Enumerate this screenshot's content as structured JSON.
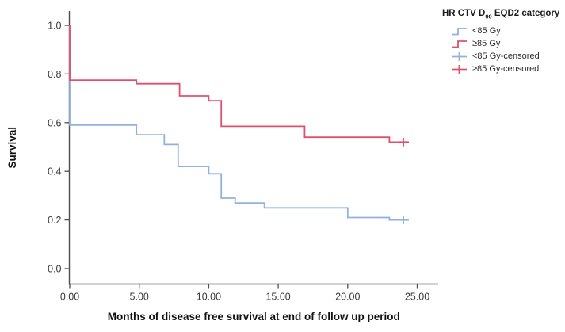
{
  "chart_data": {
    "type": "line",
    "subtype": "kaplan-meier-step-survival",
    "title": "",
    "xlabel": "Months of disease free survival at end of follow up period",
    "ylabel": "Survival",
    "xlim": [
      0,
      26.5
    ],
    "ylim": [
      0,
      1.06
    ],
    "xticks": [
      0,
      5,
      10,
      15,
      20,
      25
    ],
    "xtick_labels": [
      "0.00",
      "5.00",
      "10.00",
      "15.00",
      "20.00",
      "25.00"
    ],
    "yticks": [
      0.0,
      0.2,
      0.4,
      0.6,
      0.8,
      1.0
    ],
    "ytick_labels": [
      "0.0",
      "0.2",
      "0.4",
      "0.6",
      "0.8",
      "1.0"
    ],
    "grid": false,
    "axis_color": "#4d4d4d",
    "legend": {
      "position": "top-right",
      "title_prefix": "HR CTV D",
      "title_sub": "90",
      "title_suffix": " EQD2 category",
      "items": [
        {
          "label": "<85 Gy",
          "glyph": "step",
          "color": "#8fb3dc"
        },
        {
          "label": "≥85 Gy",
          "glyph": "step",
          "color": "#e0506e"
        },
        {
          "label": "<85 Gy-censored",
          "glyph": "plus",
          "color": "#8fb3dc"
        },
        {
          "label": "≥85 Gy-censored",
          "glyph": "plus",
          "color": "#e0506e"
        }
      ]
    },
    "series": [
      {
        "id": "lt85-gy",
        "name": "<85 Gy",
        "color": "#8fb3dc",
        "points": [
          [
            0,
            1.0
          ],
          [
            0,
            0.59
          ],
          [
            4.8,
            0.55
          ],
          [
            6.8,
            0.51
          ],
          [
            7.8,
            0.42
          ],
          [
            10,
            0.39
          ],
          [
            10.9,
            0.29
          ],
          [
            11.9,
            0.27
          ],
          [
            14,
            0.25
          ],
          [
            20,
            0.21
          ],
          [
            23,
            0.2
          ]
        ],
        "end": 24.4,
        "censored": [
          [
            24,
            0.2
          ]
        ]
      },
      {
        "id": "ge85-gy",
        "name": "≥85 Gy",
        "color": "#e0506e",
        "points": [
          [
            0,
            1.0
          ],
          [
            0,
            0.775
          ],
          [
            4.8,
            0.76
          ],
          [
            7.9,
            0.71
          ],
          [
            10,
            0.69
          ],
          [
            10.9,
            0.585
          ],
          [
            16.9,
            0.54
          ],
          [
            23,
            0.52
          ]
        ],
        "end": 24.4,
        "censored": [
          [
            24,
            0.52
          ]
        ]
      }
    ]
  }
}
